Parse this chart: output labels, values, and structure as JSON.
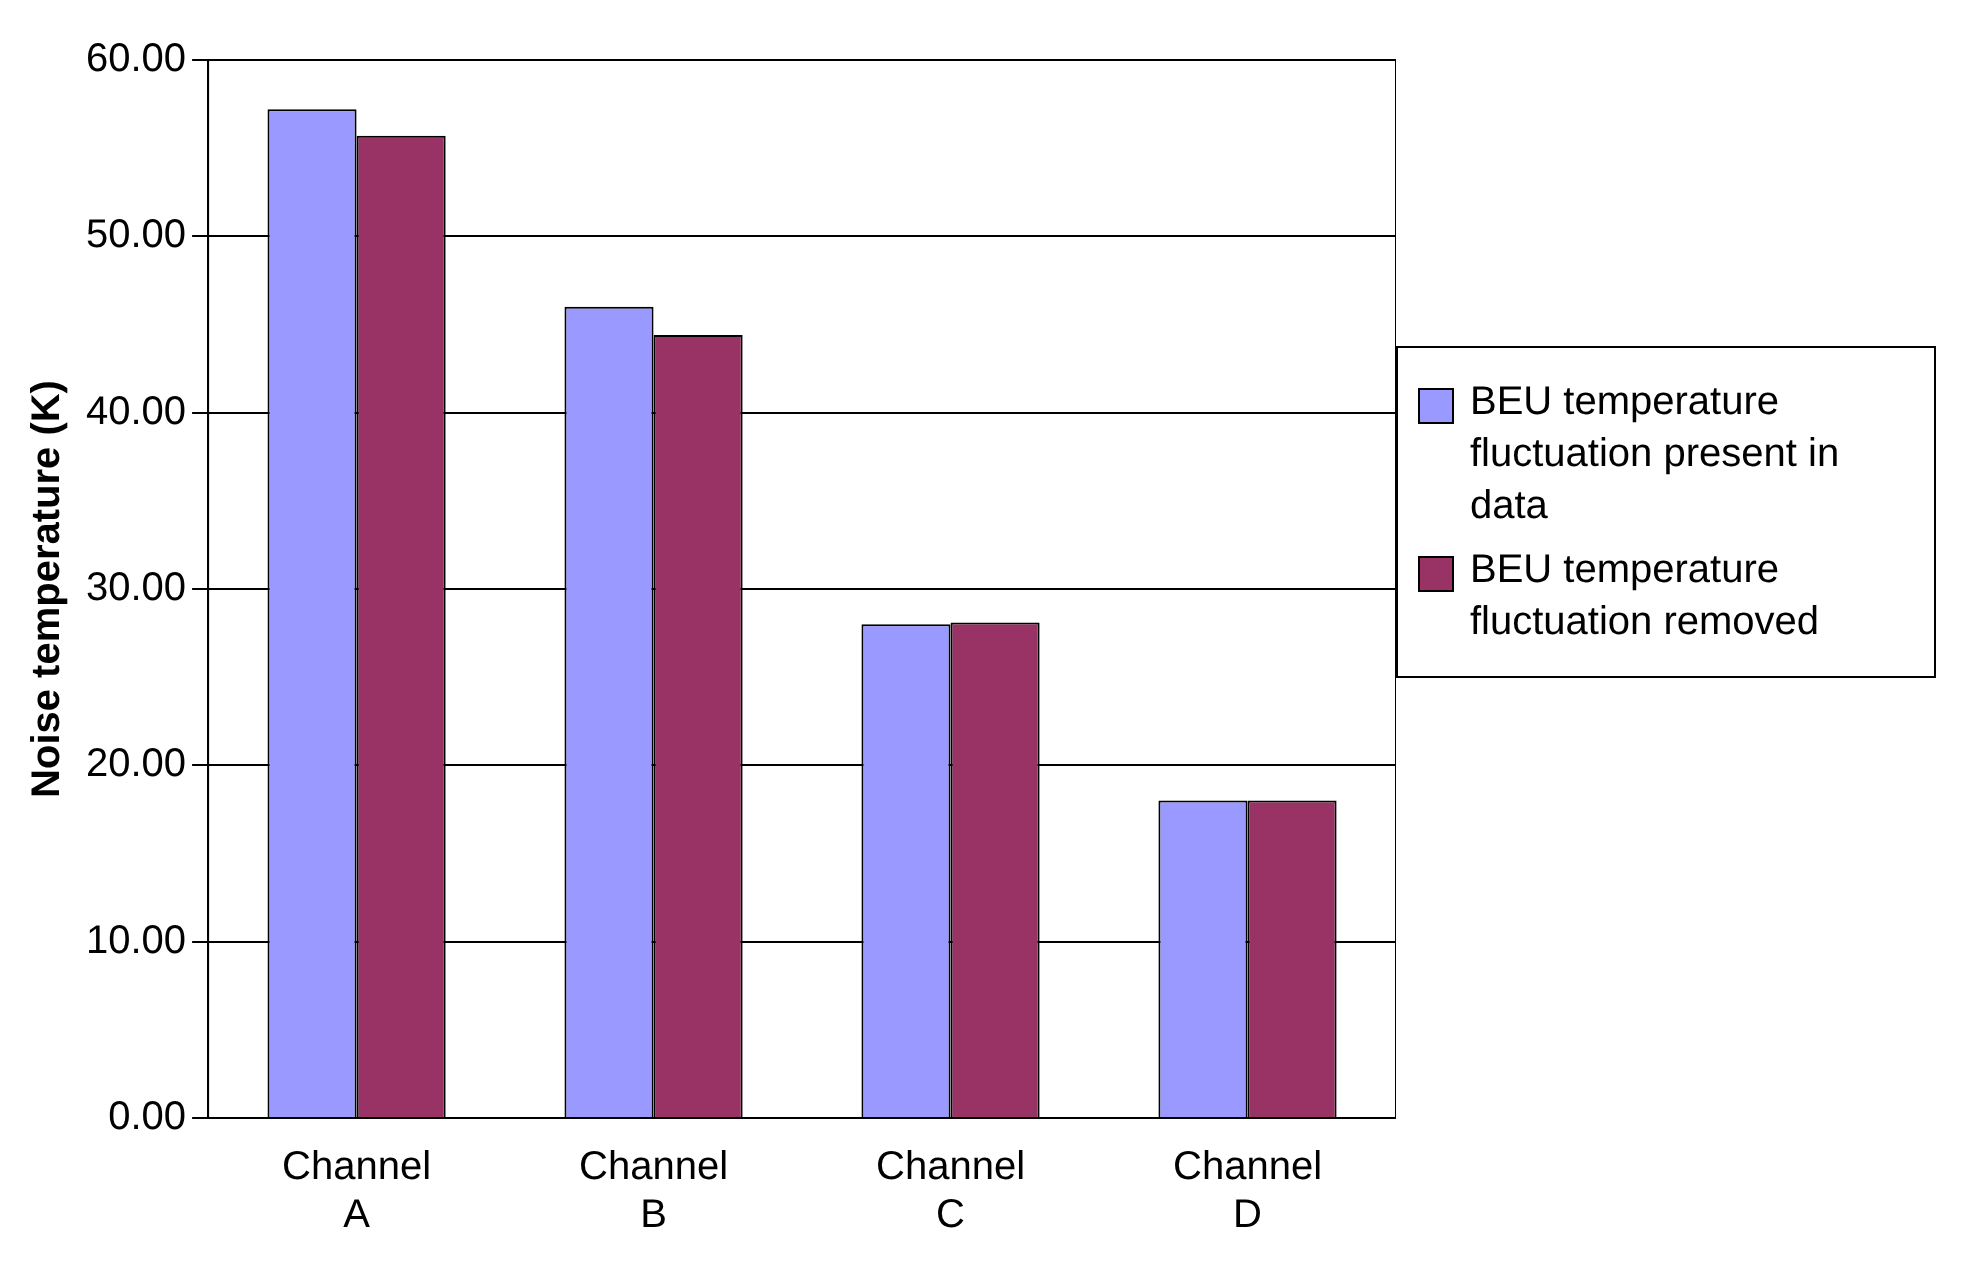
{
  "chart_data": {
    "type": "bar",
    "ylabel": "Noise temperature (K)",
    "categories": [
      "Channel A",
      "Channel B",
      "Channel C",
      "Channel D"
    ],
    "series": [
      {
        "name": "BEU temperature fluctuation present in data",
        "color": "#9999ff",
        "values": [
          57.2,
          46.0,
          28.0,
          18.0
        ]
      },
      {
        "name": "BEU temperature fluctuation removed",
        "color": "#993366",
        "values": [
          55.7,
          44.4,
          28.1,
          18.0
        ]
      }
    ],
    "ylim": [
      0,
      60
    ],
    "yticks": [
      {
        "value": 0,
        "label": "0.00"
      },
      {
        "value": 10,
        "label": "10.00"
      },
      {
        "value": 20,
        "label": "20.00"
      },
      {
        "value": 30,
        "label": "30.00"
      },
      {
        "value": 40,
        "label": "40.00"
      },
      {
        "value": 50,
        "label": "50.00"
      },
      {
        "value": 60,
        "label": "60.00"
      }
    ],
    "grid": "y",
    "legend": "right"
  }
}
